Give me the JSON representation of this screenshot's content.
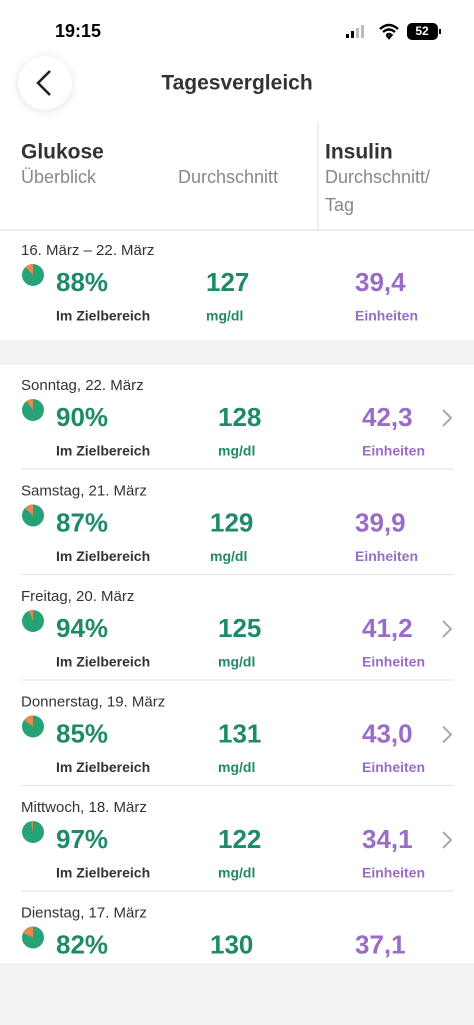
{
  "status_bar": {
    "time": "19:15",
    "battery": "52"
  },
  "header": {
    "title": "Tagesvergleich"
  },
  "columns": {
    "glucose_title": "Glukose",
    "glucose_sub": "Überblick",
    "average": "Durchschnitt",
    "insulin_title": "Insulin",
    "insulin_sub_1": "Durchschnitt/",
    "insulin_sub_2": "Tag"
  },
  "summary": {
    "date": "16. März – 22. März",
    "in_range": {
      "value": 88,
      "label": "88%"
    },
    "in_range_caption": "Im Zielbereich",
    "glucose": "127",
    "glucose_unit": "mg/dl",
    "insulin": "39,4",
    "insulin_unit": "Einheiten"
  },
  "days": [
    {
      "date": "Sonntag, 22. März",
      "in_range": {
        "value": 90,
        "label": "90%"
      },
      "in_range_caption": "Im Zielbereich",
      "glucose": "128",
      "glucose_unit": "mg/dl",
      "insulin": "42,3",
      "insulin_unit": "Einheiten",
      "chevron": true
    },
    {
      "date": "Samstag, 21. März",
      "in_range": {
        "value": 87,
        "label": "87%"
      },
      "in_range_caption": "Im Zielbereich",
      "glucose": "129",
      "glucose_unit": "mg/dl",
      "insulin": "39,9",
      "insulin_unit": "Einheiten",
      "chevron": false
    },
    {
      "date": "Freitag, 20. März",
      "in_range": {
        "value": 94,
        "label": "94%"
      },
      "in_range_caption": "Im Zielbereich",
      "glucose": "125",
      "glucose_unit": "mg/dl",
      "insulin": "41,2",
      "insulin_unit": "Einheiten",
      "chevron": true
    },
    {
      "date": "Donnerstag, 19. März",
      "in_range": {
        "value": 85,
        "label": "85%"
      },
      "in_range_caption": "Im Zielbereich",
      "glucose": "131",
      "glucose_unit": "mg/dl",
      "insulin": "43,0",
      "insulin_unit": "Einheiten",
      "chevron": true
    },
    {
      "date": "Mittwoch, 18. März",
      "in_range": {
        "value": 97,
        "label": "97%"
      },
      "in_range_caption": "Im Zielbereich",
      "glucose": "122",
      "glucose_unit": "mg/dl",
      "insulin": "34,1",
      "insulin_unit": "Einheiten",
      "chevron": true
    },
    {
      "date": "Dienstag, 17. März",
      "in_range": {
        "value": 82,
        "label": "82%"
      },
      "glucose": "130",
      "insulin": "37,1",
      "chevron": false
    }
  ]
}
